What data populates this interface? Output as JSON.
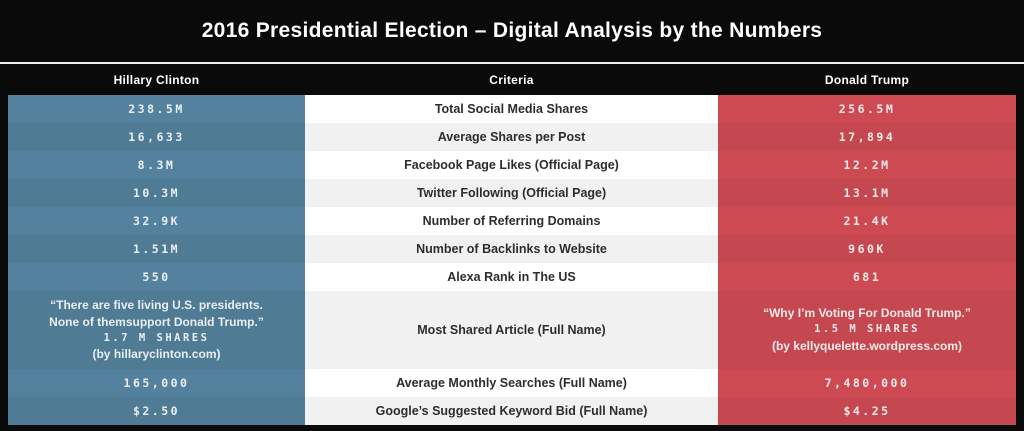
{
  "title": "2016 Presidential Election – Digital Analysis by the Numbers",
  "colors": {
    "clinton_blue": "#54829e",
    "clinton_blue_dark": "#4f7b94",
    "trump_red": "#cd4a53",
    "trump_red_dark": "#c5474f",
    "row_white": "#ffffff",
    "row_gray": "#f1f1f1",
    "band_black": "#0a0a0a"
  },
  "chart_data": {
    "type": "table",
    "title": "2016 Presidential Election – Digital Analysis by the Numbers",
    "columns": [
      "Hillary Clinton",
      "Criteria",
      "Donald Trump"
    ],
    "rows": [
      {
        "criteria": "Total Social Media Shares",
        "clinton": "238.5M",
        "trump": "256.5M"
      },
      {
        "criteria": "Average Shares per Post",
        "clinton": "16,633",
        "trump": "17,894"
      },
      {
        "criteria": "Facebook Page Likes (Official Page)",
        "clinton": "8.3M",
        "trump": "12.2M"
      },
      {
        "criteria": "Twitter Following (Official Page)",
        "clinton": "10.3M",
        "trump": "13.1M"
      },
      {
        "criteria": "Number of Referring Domains",
        "clinton": "32.9K",
        "trump": "21.4K"
      },
      {
        "criteria": "Number of Backlinks to Website",
        "clinton": "1.51M",
        "trump": "960K"
      },
      {
        "criteria": "Alexa Rank in The US",
        "clinton": "550",
        "trump": "681"
      },
      {
        "criteria": "Most Shared Article (Full Name)",
        "clinton_quote_line1": "“There are five living U.S. presidents.",
        "clinton_quote_line2": "None of themsupport Donald Trump.”",
        "clinton_shares": "1.7 M SHARES",
        "clinton_source": "(by hillaryclinton.com)",
        "trump_quote": "“Why I’m Voting For Donald Trump.”",
        "trump_shares": "1.5 M SHARES",
        "trump_source": "(by kellyquelette.wordpress.com)"
      },
      {
        "criteria": "Average Monthly Searches  (Full Name)",
        "clinton": "165,000",
        "trump": "7,480,000"
      },
      {
        "criteria": "Google’s Suggested Keyword Bid  (Full Name)",
        "clinton": "$2.50",
        "trump": "$4.25"
      }
    ]
  }
}
